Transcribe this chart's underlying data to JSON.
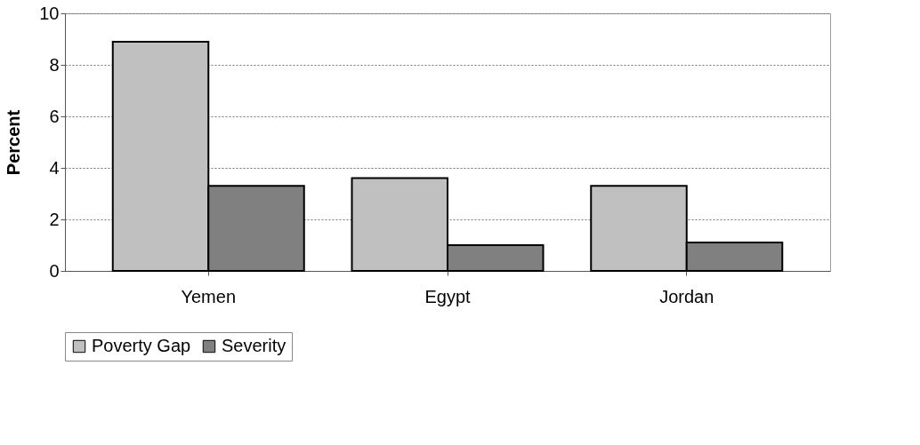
{
  "chart_data": {
    "type": "bar",
    "ylabel": "Percent",
    "categories": [
      "Yemen",
      "Egypt",
      "Jordan"
    ],
    "series": [
      {
        "name": "Poverty Gap",
        "color": "#c0c0c0",
        "values": [
          8.9,
          3.6,
          3.3
        ]
      },
      {
        "name": "Severity",
        "color": "#808080",
        "values": [
          3.3,
          1.0,
          1.1
        ]
      }
    ],
    "ylim": [
      0,
      10
    ],
    "yticks": [
      0,
      2,
      4,
      6,
      8,
      10
    ],
    "grid": "y",
    "legend": "bottom"
  }
}
